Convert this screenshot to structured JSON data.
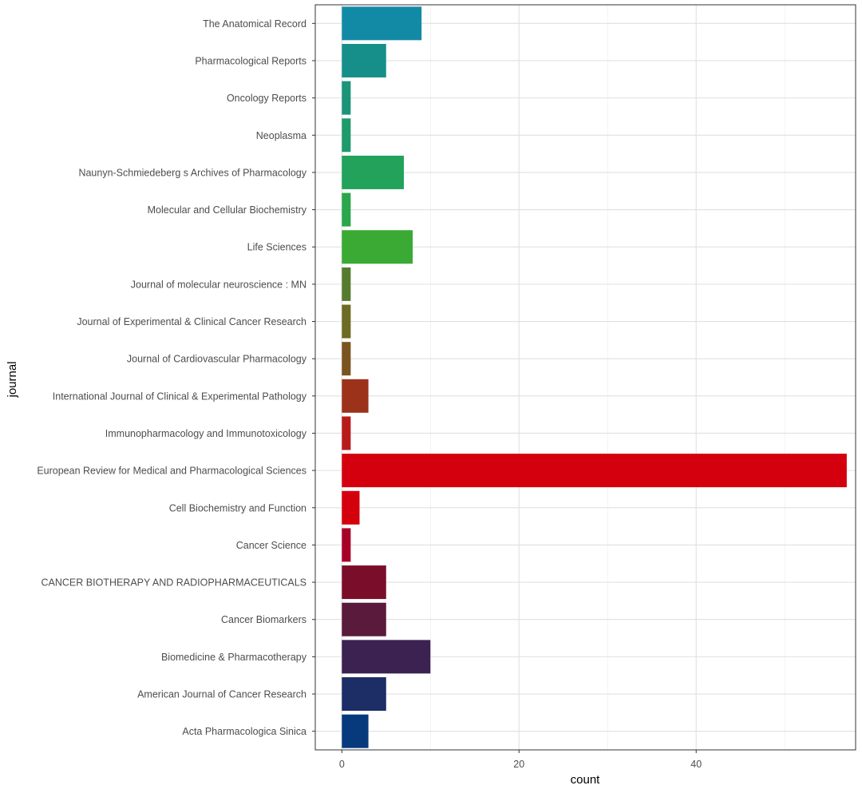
{
  "chart_data": {
    "type": "bar",
    "orientation": "horizontal",
    "xlabel": "count",
    "ylabel": "journal",
    "xlim": [
      -3,
      58
    ],
    "xticks": [
      0,
      20,
      40
    ],
    "grid": true,
    "categories": [
      "The Anatomical Record",
      "Pharmacological Reports",
      "Oncology Reports",
      "Neoplasma",
      "Naunyn-Schmiedeberg s Archives of Pharmacology",
      "Molecular and Cellular Biochemistry",
      "Life Sciences",
      "Journal of molecular neuroscience : MN",
      "Journal of Experimental & Clinical Cancer Research",
      "Journal of Cardiovascular Pharmacology",
      "International Journal of Clinical & Experimental Pathology",
      "Immunopharmacology and Immunotoxicology",
      "European Review for Medical and Pharmacological Sciences",
      "Cell Biochemistry and Function",
      "Cancer Science",
      "CANCER BIOTHERAPY AND RADIOPHARMACEUTICALS",
      "Cancer Biomarkers",
      "Biomedicine & Pharmacotherapy",
      "American Journal of Cancer Research",
      "Acta Pharmacologica Sinica"
    ],
    "values": [
      9,
      5,
      1,
      1,
      7,
      1,
      8,
      1,
      1,
      1,
      3,
      1,
      57,
      2,
      1,
      5,
      5,
      10,
      5,
      3
    ],
    "colors": [
      "#138aa5",
      "#168f8b",
      "#1c9479",
      "#1f9a6b",
      "#22a25a",
      "#2aa64d",
      "#3aaa35",
      "#567b2f",
      "#6d6b24",
      "#7a5420",
      "#9c321a",
      "#b81c1a",
      "#d4000d",
      "#d5000d",
      "#a80029",
      "#7a0e2a",
      "#5a1a3b",
      "#3c2250",
      "#1d2d66",
      "#073a7d"
    ]
  }
}
